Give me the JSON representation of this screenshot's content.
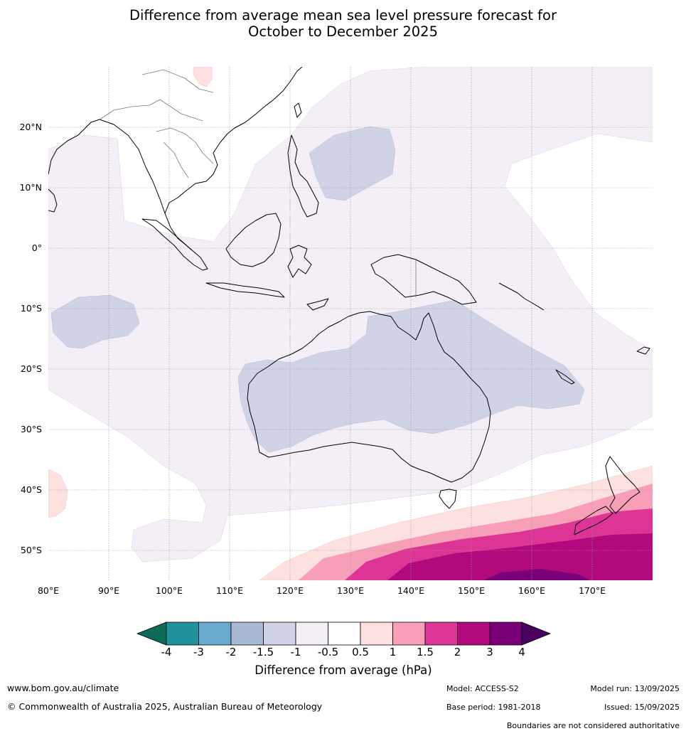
{
  "title": {
    "line1": "Difference from average mean sea level pressure forecast for",
    "line2": "October to December 2025"
  },
  "map": {
    "lon_range": [
      80,
      180
    ],
    "lat_range": [
      -55,
      30
    ],
    "lon_labels": [
      "80°E",
      "90°E",
      "100°E",
      "110°E",
      "120°E",
      "130°E",
      "140°E",
      "150°E",
      "160°E",
      "170°E"
    ],
    "lat_labels": [
      "20°N",
      "10°N",
      "0°",
      "10°S",
      "20°S",
      "30°S",
      "40°S",
      "50°S"
    ],
    "colors": {
      "below_-4": "#0d6b5a",
      "-4_-3": "#21929c",
      "-3_-2": "#6aaacf",
      "-2_-1.5": "#a9b8d3",
      "-1.5_-1": "#d0d3e6",
      "-1_-0.5": "#f4eef6",
      "-0.5_0.5": "#ffffff",
      "0.5_1": "#fde0e0",
      "1_1.5": "#f89fb8",
      "1.5_2": "#dd3596",
      "2_3": "#b10a7d",
      "3_4": "#7a0079",
      "above_4": "#4a005f"
    }
  },
  "colorbar": {
    "ticks": [
      "-4",
      "-3",
      "-2",
      "-1.5",
      "-1",
      "-0.5",
      "0.5",
      "1",
      "1.5",
      "2",
      "3",
      "4"
    ],
    "label": "Difference from average (hPa)"
  },
  "footer": {
    "website": "www.bom.gov.au/climate",
    "copyright": "© Commonwealth of Australia 2025, Australian Bureau of Meteorology",
    "model": "Model: ACCESS-S2",
    "base_period": "Base period: 1981-2018",
    "model_run": "Model run: 13/09/2025",
    "issued": "Issued: 15/09/2025",
    "disclaimer": "Boundaries are not considered authoritative"
  }
}
